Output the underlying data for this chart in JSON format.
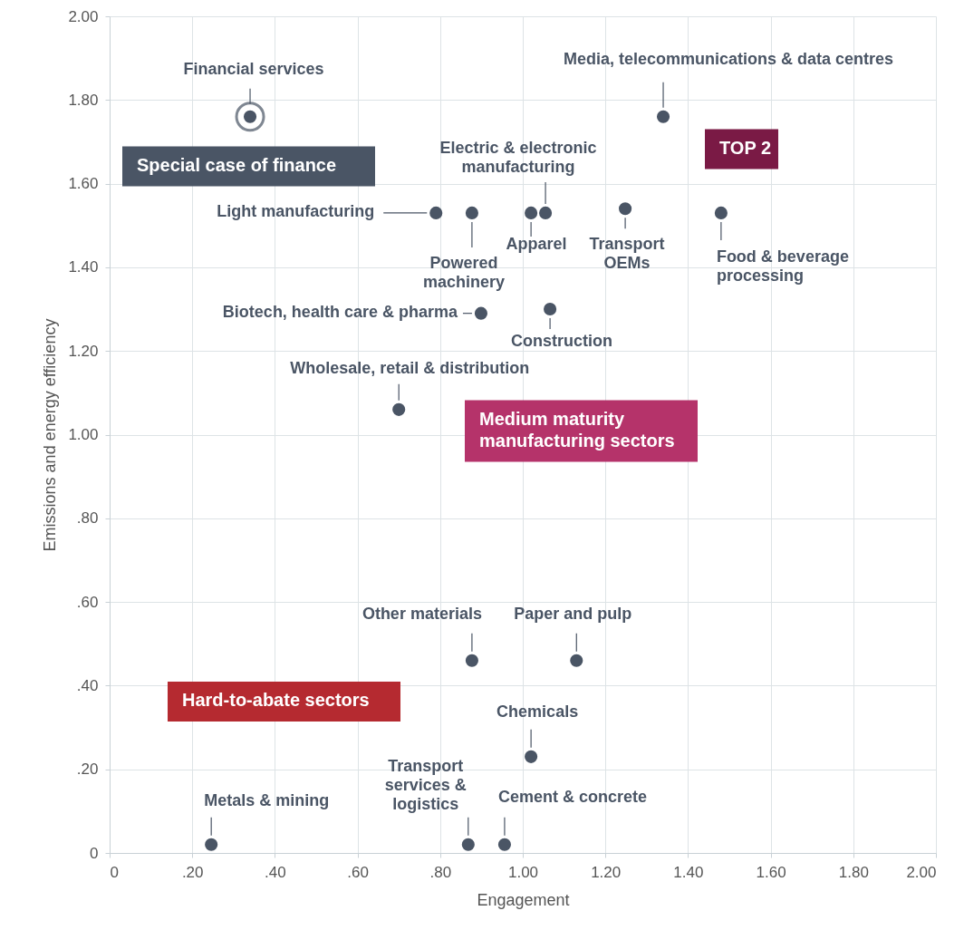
{
  "chart_data": {
    "type": "scatter",
    "xlabel": "Engagement",
    "ylabel": "Emissions and energy efficiency",
    "x": [
      0.34,
      1.34,
      1.48,
      0.79,
      0.877,
      1.02,
      1.055,
      1.248,
      0.899,
      1.066,
      0.7,
      0.877,
      1.13,
      1.02,
      0.246,
      0.868,
      0.956
    ],
    "series": [
      {
        "color": "#4a5565",
        "values": [
          1.76,
          1.76,
          1.53,
          1.53,
          1.53,
          1.53,
          1.53,
          1.54,
          1.29,
          1.3,
          1.06,
          0.46,
          0.46,
          0.23,
          0.02,
          0.02,
          0.02
        ],
        "value_labels": [
          "Financial services",
          "Media, telecommunications & data centres",
          "Food & beverage processing",
          "Light manufacturing",
          "Powered machinery",
          "Apparel",
          "Electric & electronic manufacturing",
          "Transport OEMs",
          "Biotech, health care & pharma",
          "Construction",
          "Wholesale, retail & distribution",
          "Other materials",
          "Paper and pulp",
          "Chemicals",
          "Metals & mining",
          "Transport services & logistics",
          "Cement & concrete"
        ]
      }
    ],
    "annotations": [
      "Special case of finance",
      "Medium maturity manufacturing sectors",
      "TOP 2",
      "Hard-to-abate sectors"
    ],
    "xlim": [
      0,
      2
    ],
    "ylim": [
      0,
      2
    ],
    "xticks": [
      0,
      {
        "value": 0.2,
        "label": ".20"
      },
      {
        "value": 0.4,
        "label": ".40"
      },
      {
        "value": 0.6,
        "label": ".60"
      },
      {
        "value": 0.8,
        "label": ".80"
      },
      {
        "value": 1,
        "label": "1.00"
      },
      {
        "value": 1.2,
        "label": "1.20"
      },
      {
        "value": 1.4,
        "label": "1.40"
      },
      {
        "value": 1.6,
        "label": "1.60"
      },
      {
        "value": 1.8,
        "label": "1.80"
      },
      {
        "value": 2,
        "label": "2.00"
      }
    ],
    "yticks": [
      0,
      {
        "value": 0.2,
        "label": ".20"
      },
      {
        "value": 0.4,
        "label": ".40"
      },
      {
        "value": 0.6,
        "label": ".60"
      },
      {
        "value": 0.8,
        "label": ".80"
      },
      {
        "value": 1,
        "label": "1.00"
      },
      {
        "value": 1.2,
        "label": "1.20"
      },
      {
        "value": 1.4,
        "label": "1.40"
      },
      {
        "value": 1.6,
        "label": "1.60"
      },
      {
        "value": 1.8,
        "label": "1.80"
      },
      {
        "value": 2,
        "label": "2.00"
      }
    ],
    "grid": true,
    "marker": "circle"
  }
}
